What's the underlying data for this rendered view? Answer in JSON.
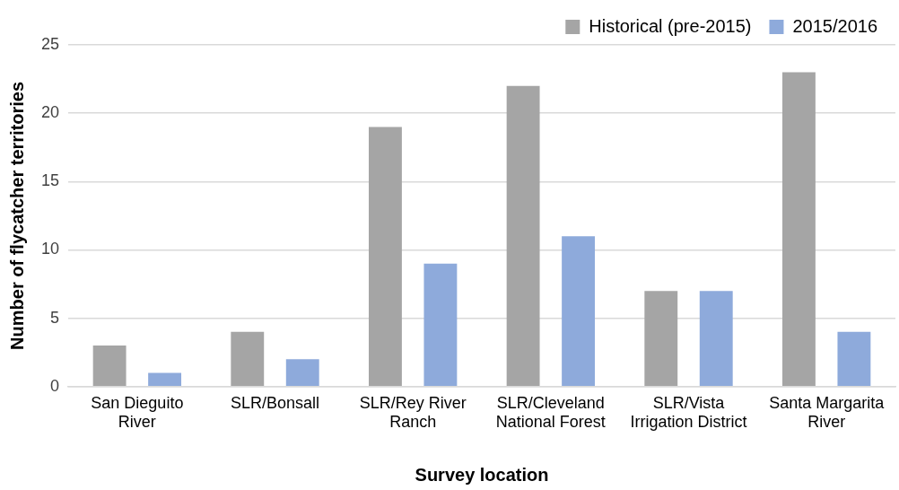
{
  "chart_data": {
    "type": "bar",
    "xlabel": "Survey location",
    "ylabel": "Number of flycatcher territories",
    "categories": [
      "San Dieguito River",
      "SLR/Bonsall",
      "SLR/Rey River Ranch",
      "SLR/Cleveland National Forest",
      "SLR/Vista Irrigation District",
      "Santa Margarita River"
    ],
    "series": [
      {
        "name": "Historical (pre-2015)",
        "color": "#a5a5a5",
        "values": [
          3,
          4,
          19,
          22,
          7,
          23
        ]
      },
      {
        "name": "2015/2016",
        "color": "#8eaadb",
        "values": [
          1,
          2,
          9,
          11,
          7,
          4
        ]
      }
    ],
    "ylim": [
      0,
      25
    ],
    "yticks": [
      0,
      5,
      10,
      15,
      20,
      25
    ],
    "grid": "y",
    "legend": "top right"
  }
}
